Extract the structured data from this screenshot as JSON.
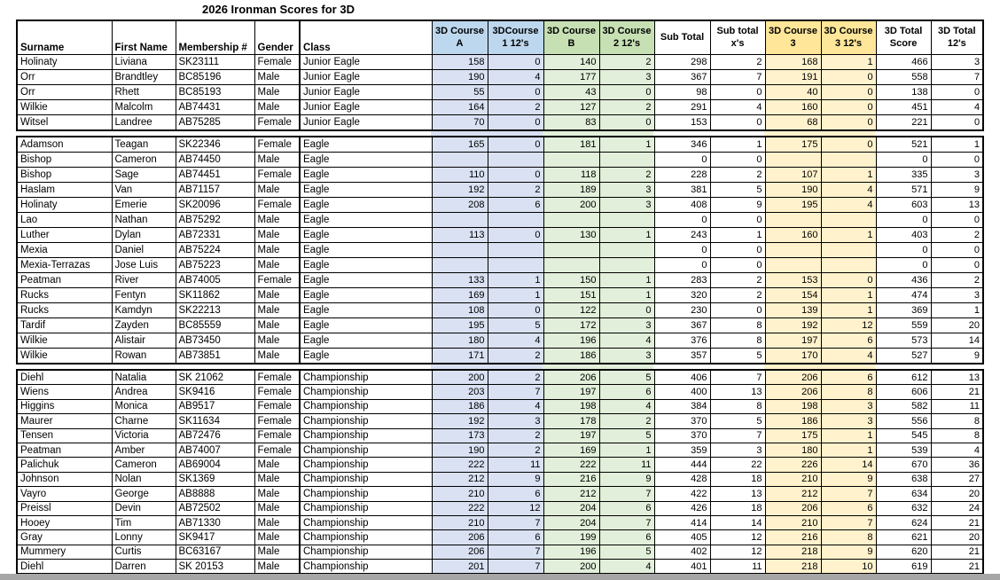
{
  "title": "2026 Ironman Scores for 3D",
  "colors": {
    "blue_header": "#BDD7EE",
    "blue_cell": "#D9E1F2",
    "green_header": "#C6E0B4",
    "green_cell": "#E2EFDA",
    "yellow_header": "#FFE699",
    "yellow_cell": "#FFF2CC",
    "border": "#000000",
    "bottom_bar": "#A6A6A6"
  },
  "columns": [
    {
      "id": "surname",
      "label_lines": [
        "Surname"
      ],
      "align": "left",
      "group": "plain"
    },
    {
      "id": "first-name",
      "label_lines": [
        "First Name"
      ],
      "align": "left",
      "group": "plain"
    },
    {
      "id": "membership",
      "label_lines": [
        "Membership #"
      ],
      "align": "left",
      "group": "plain"
    },
    {
      "id": "gender",
      "label_lines": [
        "Gender"
      ],
      "align": "left",
      "group": "plain",
      "thick_right": true
    },
    {
      "id": "class",
      "label_lines": [
        "Class"
      ],
      "align": "left",
      "group": "plain"
    },
    {
      "id": "course-a",
      "label_lines": [
        "3D Course",
        "A"
      ],
      "align": "right",
      "group": "blue"
    },
    {
      "id": "course-1-12s",
      "label_lines": [
        "3DCourse",
        "1 12's"
      ],
      "align": "right",
      "group": "blue"
    },
    {
      "id": "course-b",
      "label_lines": [
        "3D Course",
        "B"
      ],
      "align": "right",
      "group": "green"
    },
    {
      "id": "course-2-12s",
      "label_lines": [
        "3D Course",
        "2 12's"
      ],
      "align": "right",
      "group": "green"
    },
    {
      "id": "sub-total",
      "label_lines": [
        "Sub Total"
      ],
      "align": "right",
      "group": "plain",
      "center_header": true
    },
    {
      "id": "sub-total-xs",
      "label_lines": [
        "Sub total",
        "x's"
      ],
      "align": "right",
      "group": "plain",
      "center_header": true
    },
    {
      "id": "course-3",
      "label_lines": [
        "3D Course",
        "3"
      ],
      "align": "right",
      "group": "yellow"
    },
    {
      "id": "course-3-12s",
      "label_lines": [
        "3D Course",
        "3 12's"
      ],
      "align": "right",
      "group": "yellow"
    },
    {
      "id": "total-score",
      "label_lines": [
        "3D Total",
        "Score"
      ],
      "align": "right",
      "group": "plain",
      "center_header": true
    },
    {
      "id": "total-12s",
      "label_lines": [
        "3D Total",
        "12's"
      ],
      "align": "right",
      "group": "plain",
      "center_header": true
    }
  ],
  "sections": [
    {
      "name": "Junior Eagle",
      "rows": [
        [
          "Holinaty",
          "Liviana",
          "SK23111",
          "Female",
          "Junior Eagle",
          158,
          0,
          140,
          2,
          298,
          2,
          168,
          1,
          466,
          3
        ],
        [
          "Orr",
          "Brandtley",
          "BC85196",
          "Male",
          "Junior Eagle",
          190,
          4,
          177,
          3,
          367,
          7,
          191,
          0,
          558,
          7
        ],
        [
          "Orr",
          "Rhett",
          "BC85193",
          "Male",
          "Junior Eagle",
          55,
          0,
          43,
          0,
          98,
          0,
          40,
          0,
          138,
          0
        ],
        [
          "Wilkie",
          "Malcolm",
          "AB74431",
          "Male",
          "Junior Eagle",
          164,
          2,
          127,
          2,
          291,
          4,
          160,
          0,
          451,
          4
        ],
        [
          "Witsel",
          "Landree",
          "AB75285",
          "Female",
          "Junior Eagle",
          70,
          0,
          83,
          0,
          153,
          0,
          68,
          0,
          221,
          0
        ]
      ]
    },
    {
      "name": "Eagle",
      "rows": [
        [
          "Adamson",
          "Teagan",
          "SK22346",
          "Female",
          "Eagle",
          165,
          0,
          181,
          1,
          346,
          1,
          175,
          0,
          521,
          1
        ],
        [
          "Bishop",
          "Cameron",
          "AB74450",
          "Male",
          "Eagle",
          "",
          "",
          "",
          "",
          0,
          0,
          "",
          "",
          0,
          0
        ],
        [
          "Bishop",
          "Sage",
          "AB74451",
          "Female",
          "Eagle",
          110,
          0,
          118,
          2,
          228,
          2,
          107,
          1,
          335,
          3
        ],
        [
          "Haslam",
          "Van",
          "AB71157",
          "Male",
          "Eagle",
          192,
          2,
          189,
          3,
          381,
          5,
          190,
          4,
          571,
          9
        ],
        [
          "Holinaty",
          "Emerie",
          "SK20096",
          "Female",
          "Eagle",
          208,
          6,
          200,
          3,
          408,
          9,
          195,
          4,
          603,
          13
        ],
        [
          "Lao",
          "Nathan",
          "AB75292",
          "Male",
          "Eagle",
          "",
          "",
          "",
          "",
          0,
          0,
          "",
          "",
          0,
          0
        ],
        [
          "Luther",
          "Dylan",
          "AB72331",
          "Male",
          "Eagle",
          113,
          0,
          130,
          1,
          243,
          1,
          160,
          1,
          403,
          2
        ],
        [
          "Mexia",
          "Daniel",
          "AB75224",
          "Male",
          "Eagle",
          "",
          "",
          "",
          "",
          0,
          0,
          "",
          "",
          0,
          0
        ],
        [
          "Mexia-Terrazas",
          "Jose Luis",
          "AB75223",
          "Male",
          "Eagle",
          "",
          "",
          "",
          "",
          0,
          0,
          "",
          "",
          0,
          0
        ],
        [
          "Peatman",
          "River",
          "AB74005",
          "Female",
          "Eagle",
          133,
          1,
          150,
          1,
          283,
          2,
          153,
          0,
          436,
          2
        ],
        [
          "Rucks",
          "Fentyn",
          "SK11862",
          "Male",
          "Eagle",
          169,
          1,
          151,
          1,
          320,
          2,
          154,
          1,
          474,
          3
        ],
        [
          "Rucks",
          "Kamdyn",
          "SK22213",
          "Male",
          "Eagle",
          108,
          0,
          122,
          0,
          230,
          0,
          139,
          1,
          369,
          1
        ],
        [
          "Tardif",
          "Zayden",
          "BC85559",
          "Male",
          "Eagle",
          195,
          5,
          172,
          3,
          367,
          8,
          192,
          12,
          559,
          20
        ],
        [
          "Wilkie",
          "Alistair",
          "AB73450",
          "Male",
          "Eagle",
          180,
          4,
          196,
          4,
          376,
          8,
          197,
          6,
          573,
          14
        ],
        [
          "Wilkie",
          "Rowan",
          "AB73851",
          "Male",
          "Eagle",
          171,
          2,
          186,
          3,
          357,
          5,
          170,
          4,
          527,
          9
        ]
      ]
    },
    {
      "name": "Championship",
      "rows": [
        [
          "Diehl",
          "Natalia",
          "SK 21062",
          "Female",
          "Championship",
          200,
          2,
          206,
          5,
          406,
          7,
          206,
          6,
          612,
          13
        ],
        [
          "Wiens",
          "Andrea",
          "SK9416",
          "Female",
          "Championship",
          203,
          7,
          197,
          6,
          400,
          13,
          206,
          8,
          606,
          21
        ],
        [
          "Higgins",
          "Monica",
          "AB9517",
          "Female",
          "Championship",
          186,
          4,
          198,
          4,
          384,
          8,
          198,
          3,
          582,
          11
        ],
        [
          "Maurer",
          "Charne",
          "SK11634",
          "Female",
          "Championship",
          192,
          3,
          178,
          2,
          370,
          5,
          186,
          3,
          556,
          8
        ],
        [
          "Tensen",
          "Victoria",
          "AB72476",
          "Female",
          "Championship",
          173,
          2,
          197,
          5,
          370,
          7,
          175,
          1,
          545,
          8
        ],
        [
          "Peatman",
          "Amber",
          "AB74007",
          "Female",
          "Championship",
          190,
          2,
          169,
          1,
          359,
          3,
          180,
          1,
          539,
          4
        ],
        [
          "Palichuk",
          "Cameron",
          "AB69004",
          "Male",
          "Championship",
          222,
          11,
          222,
          11,
          444,
          22,
          226,
          14,
          670,
          36
        ],
        [
          "Johnson",
          "Nolan",
          "SK1369",
          "Male",
          "Championship",
          212,
          9,
          216,
          9,
          428,
          18,
          210,
          9,
          638,
          27
        ],
        [
          "Vayro",
          "George",
          "AB8888",
          "Male",
          "Championship",
          210,
          6,
          212,
          7,
          422,
          13,
          212,
          7,
          634,
          20
        ],
        [
          "Preissl",
          "Devin",
          "AB72502",
          "Male",
          "Championship",
          222,
          12,
          204,
          6,
          426,
          18,
          206,
          6,
          632,
          24
        ],
        [
          "Hooey",
          "Tim",
          "AB71330",
          "Male",
          "Championship",
          210,
          7,
          204,
          7,
          414,
          14,
          210,
          7,
          624,
          21
        ],
        [
          "Gray",
          "Lonny",
          "SK9417",
          "Male",
          "Championship",
          206,
          6,
          199,
          6,
          405,
          12,
          216,
          8,
          621,
          20
        ],
        [
          "Mummery",
          "Curtis",
          "BC63167",
          "Male",
          "Championship",
          206,
          7,
          196,
          5,
          402,
          12,
          218,
          9,
          620,
          21
        ],
        [
          "Diehl",
          "Darren",
          "SK 20153",
          "Male",
          "Championship",
          201,
          7,
          200,
          4,
          401,
          11,
          218,
          10,
          619,
          21
        ]
      ]
    }
  ]
}
